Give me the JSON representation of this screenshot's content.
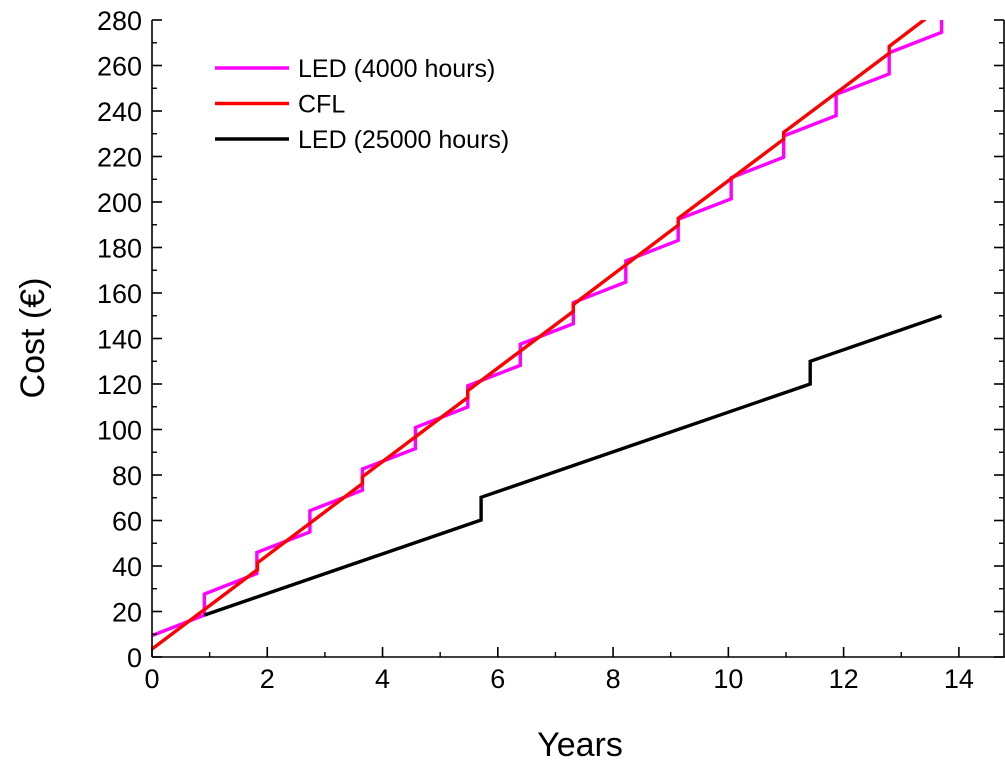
{
  "chart_data": {
    "type": "line",
    "title": "",
    "xlabel": "Years",
    "ylabel": "Cost (€)",
    "xlim": [
      0,
      14.8
    ],
    "ylim": [
      0,
      280
    ],
    "xticks": [
      0,
      2,
      4,
      6,
      8,
      10,
      12,
      14
    ],
    "yticks": [
      0,
      20,
      40,
      60,
      80,
      100,
      120,
      140,
      160,
      180,
      200,
      220,
      240,
      260,
      280
    ],
    "legend_position": "top-left",
    "grid": false,
    "series": [
      {
        "name": "LED (4000 hours)",
        "color": "#ff00ff",
        "x": [
          0,
          0.91,
          0.91,
          1.82,
          1.82,
          2.74,
          2.74,
          3.65,
          3.65,
          4.57,
          4.57,
          5.48,
          5.48,
          6.39,
          6.39,
          7.31,
          7.31,
          8.22,
          8.22,
          9.13,
          9.13,
          10.05,
          10.05,
          10.96,
          10.96,
          11.87,
          11.87,
          12.79,
          12.79,
          13.7,
          13.7
        ],
        "y": [
          9.4,
          18.4,
          27.7,
          36.7,
          46,
          55,
          64.3,
          73.3,
          82.6,
          91.6,
          100.9,
          109.9,
          119.2,
          128.2,
          137.5,
          146.5,
          155.8,
          164.8,
          174.1,
          183.1,
          192.4,
          201.4,
          210.7,
          219.7,
          229,
          238,
          247.3,
          256.3,
          265.6,
          274.6,
          283.9
        ]
      },
      {
        "name": "CFL",
        "color": "#ff0000",
        "x": [
          0,
          1.83,
          1.83,
          3.65,
          3.65,
          5.48,
          5.48,
          7.31,
          7.31,
          9.13,
          9.13,
          10.96,
          10.96,
          12.79,
          12.79,
          13.7
        ],
        "y": [
          3.5,
          38.4,
          41.4,
          76.2,
          79.2,
          114.1,
          117.1,
          151.9,
          154.9,
          189.8,
          192.8,
          227.6,
          230.6,
          265.4,
          268.4,
          285.9
        ]
      },
      {
        "name": "LED (25000 hours)",
        "color": "#000000",
        "x": [
          0.91,
          5.71,
          5.71,
          11.42,
          11.42,
          13.7
        ],
        "y": [
          18.4,
          60.2,
          70.2,
          120,
          130,
          150
        ]
      }
    ]
  }
}
